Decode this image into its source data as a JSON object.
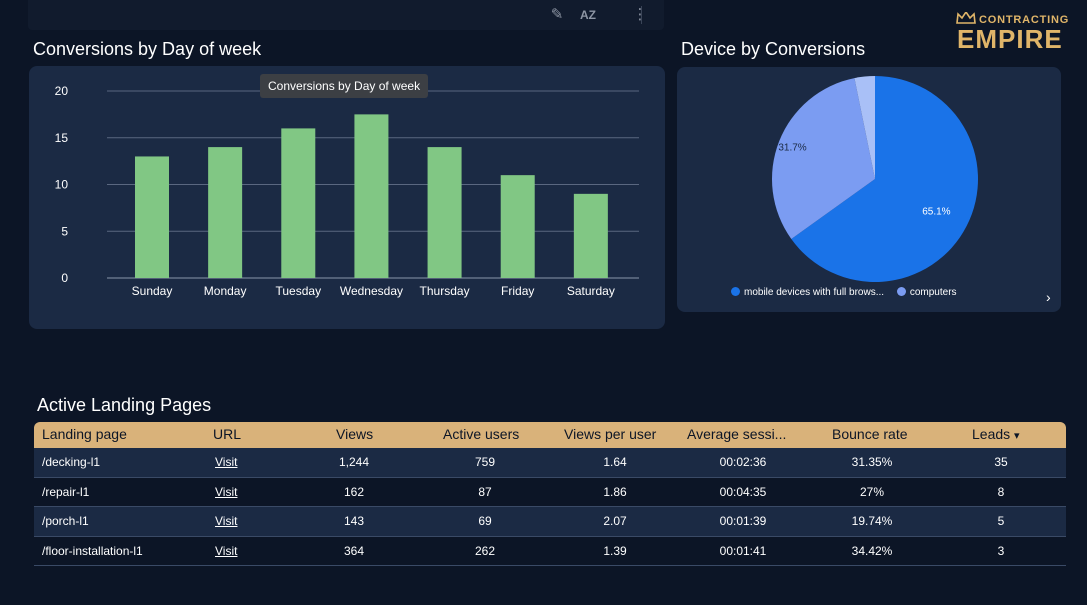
{
  "toolbar": {
    "icons": [
      "pencil-icon",
      "sort-az-icon",
      "more-vert-icon"
    ],
    "sort_label": "AZ"
  },
  "logo": {
    "small": "CONTRACTING",
    "big": "EMPIRE",
    "color": "#e0b569"
  },
  "bar_section": {
    "title": "Conversions by Day of week",
    "tooltip": "Conversions by Day of week"
  },
  "pie_section": {
    "title": "Device by Conversions",
    "legend": [
      {
        "label": "mobile devices with full brows...",
        "color": "#1a73e8"
      },
      {
        "label": "computers",
        "color": "#7b9cf2"
      }
    ]
  },
  "chart_data": [
    {
      "type": "bar",
      "categories": [
        "Sunday",
        "Monday",
        "Tuesday",
        "Wednesday",
        "Thursday",
        "Friday",
        "Saturday"
      ],
      "values": [
        13,
        14,
        16,
        17.5,
        14,
        11,
        9
      ],
      "title": "Conversions by Day of week",
      "xlabel": "",
      "ylabel": "",
      "ylim": [
        0,
        20
      ],
      "yticks": [
        0,
        5,
        10,
        15,
        20
      ],
      "color": "#81c784",
      "grid": true
    },
    {
      "type": "pie",
      "title": "Device by Conversions",
      "slices": [
        {
          "label": "mobile devices with full brows...",
          "value": 65.1,
          "display": "65.1%",
          "color": "#1a73e8"
        },
        {
          "label": "computers",
          "value": 31.7,
          "display": "31.7%",
          "color": "#7b9cf2"
        },
        {
          "label": "",
          "value": 3.2,
          "display": "",
          "color": "#a9c0f7"
        }
      ],
      "legend": "bottom"
    }
  ],
  "table": {
    "title": "Active Landing Pages",
    "headers": [
      "Landing page",
      "URL",
      "Views",
      "Active users",
      "Views per user",
      "Average sessi...",
      "Bounce rate",
      "Leads"
    ],
    "sort_indicator": "▾",
    "rows": [
      {
        "page": "/decking-l1",
        "url": "Visit",
        "views": "1,244",
        "users": "759",
        "vpu": "1.64",
        "avg": "00:02:36",
        "bounce": "31.35%",
        "leads": "35"
      },
      {
        "page": "/repair-l1",
        "url": "Visit",
        "views": "162",
        "users": "87",
        "vpu": "1.86",
        "avg": "00:04:35",
        "bounce": "27%",
        "leads": "8"
      },
      {
        "page": "/porch-l1",
        "url": "Visit",
        "views": "143",
        "users": "69",
        "vpu": "2.07",
        "avg": "00:01:39",
        "bounce": "19.74%",
        "leads": "5"
      },
      {
        "page": "/floor-installation-l1",
        "url": "Visit",
        "views": "364",
        "users": "262",
        "vpu": "1.39",
        "avg": "00:01:41",
        "bounce": "34.42%",
        "leads": "3"
      }
    ]
  }
}
